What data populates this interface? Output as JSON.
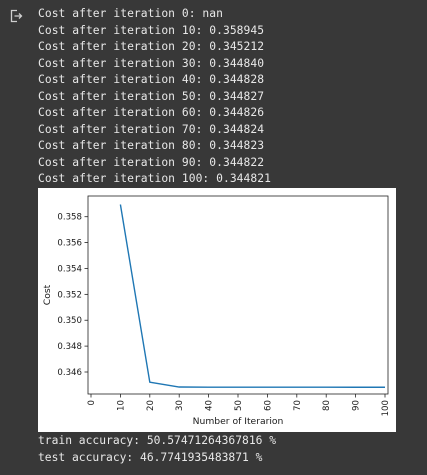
{
  "output": {
    "icon": "output-redirect-icon",
    "log_lines": [
      "Cost after iteration 0: nan",
      "Cost after iteration 10: 0.358945",
      "Cost after iteration 20: 0.345212",
      "Cost after iteration 30: 0.344840",
      "Cost after iteration 40: 0.344828",
      "Cost after iteration 50: 0.344827",
      "Cost after iteration 60: 0.344826",
      "Cost after iteration 70: 0.344824",
      "Cost after iteration 80: 0.344823",
      "Cost after iteration 90: 0.344822",
      "Cost after iteration 100: 0.344821"
    ],
    "train_accuracy": "train accuracy: 50.57471264367816 %",
    "test_accuracy": "test accuracy: 46.7741935483871 %"
  },
  "colors": {
    "background": "#383838",
    "text": "#e8e8e8",
    "line": "#1f77b4"
  },
  "chart_data": {
    "type": "line",
    "x": [
      10,
      20,
      30,
      40,
      50,
      60,
      70,
      80,
      90,
      100
    ],
    "series": [
      {
        "values": [
          0.358945,
          0.345212,
          0.34484,
          0.344828,
          0.344827,
          0.344826,
          0.344824,
          0.344823,
          0.344822,
          0.344821
        ]
      }
    ],
    "xlabel": "Number of Iterarion",
    "ylabel": "Cost",
    "xlim": [
      0,
      100
    ],
    "ylim": [
      0.3443,
      0.3596
    ],
    "xticks": [
      0,
      10,
      20,
      30,
      40,
      50,
      60,
      70,
      80,
      90,
      100
    ],
    "xtick_labels": [
      "0",
      "10",
      "20",
      "30",
      "40",
      "50",
      "60",
      "70",
      "80",
      "90",
      "100"
    ],
    "yticks": [
      0.346,
      0.348,
      0.35,
      0.352,
      0.354,
      0.356,
      0.358
    ],
    "ytick_labels": [
      "0.346",
      "0.348",
      "0.350",
      "0.352",
      "0.354",
      "0.356",
      "0.358"
    ],
    "grid": false,
    "legend": false
  }
}
